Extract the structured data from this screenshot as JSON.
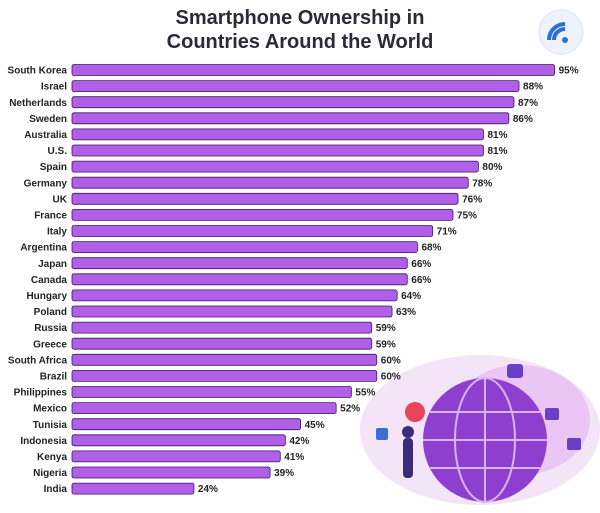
{
  "chart_data": {
    "type": "bar",
    "orientation": "horizontal",
    "title": "Smartphone Ownership in Countries Around the World",
    "categories": [
      "South Korea",
      "Israel",
      "Netherlands",
      "Sweden",
      "Australia",
      "U.S.",
      "Spain",
      "Germany",
      "UK",
      "France",
      "Italy",
      "Argentina",
      "Japan",
      "Canada",
      "Hungary",
      "Poland",
      "Russia",
      "Greece",
      "South Africa",
      "Brazil",
      "Philippines",
      "Mexico",
      "Tunisia",
      "Indonesia",
      "Kenya",
      "Nigeria",
      "India"
    ],
    "values": [
      95,
      88,
      87,
      86,
      81,
      81,
      80,
      78,
      76,
      75,
      71,
      68,
      66,
      66,
      64,
      63,
      59,
      59,
      60,
      60,
      55,
      52,
      45,
      42,
      41,
      39,
      24
    ],
    "value_labels": [
      "95%",
      "88%",
      "87%",
      "86%",
      "81%",
      "81%",
      "80%",
      "78%",
      "76%",
      "75%",
      "71%",
      "68%",
      "66%",
      "66%",
      "64%",
      "63%",
      "59%",
      "59%",
      "60%",
      "60%",
      "55%",
      "52%",
      "45%",
      "42%",
      "41%",
      "39%",
      "24%"
    ],
    "color": "#b15ee8"
  }
}
